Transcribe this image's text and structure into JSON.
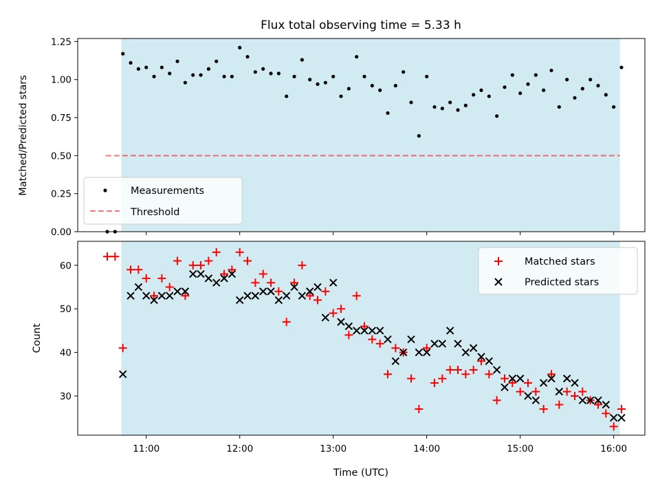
{
  "chart_data": [
    {
      "type": "scatter",
      "title": "Flux total observing time = 5.33 h",
      "ylabel": "Matched/Predicted stars",
      "xlabel": "",
      "ylim": [
        0.0,
        1.27
      ],
      "yticks": [
        "0.00",
        "0.25",
        "0.50",
        "0.75",
        "1.00",
        "1.25"
      ],
      "ytick_values": [
        0.0,
        0.25,
        0.5,
        0.75,
        1.0,
        1.25
      ],
      "grid": false,
      "legend_position": "lower-left",
      "shaded_span": {
        "from": "10:44",
        "to": "16:04",
        "color": "#add8e6"
      },
      "threshold": {
        "name": "Threshold",
        "value": 0.5,
        "from": "10:34",
        "to": "16:04",
        "color": "#ff0000",
        "style": "dashed"
      },
      "series": [
        {
          "name": "Measurements",
          "color": "#000000",
          "marker": "dot",
          "x": [
            "10:35",
            "10:40",
            "10:45",
            "10:50",
            "10:55",
            "11:00",
            "11:05",
            "11:10",
            "11:15",
            "11:20",
            "11:25",
            "11:30",
            "11:35",
            "11:40",
            "11:45",
            "11:50",
            "11:55",
            "12:00",
            "12:05",
            "12:10",
            "12:15",
            "12:20",
            "12:25",
            "12:30",
            "12:35",
            "12:40",
            "12:45",
            "12:50",
            "12:55",
            "13:00",
            "13:05",
            "13:10",
            "13:15",
            "13:20",
            "13:25",
            "13:30",
            "13:35",
            "13:40",
            "13:45",
            "13:50",
            "13:55",
            "14:00",
            "14:05",
            "14:10",
            "14:15",
            "14:20",
            "14:25",
            "14:30",
            "14:35",
            "14:40",
            "14:45",
            "14:50",
            "14:55",
            "15:00",
            "15:05",
            "15:10",
            "15:15",
            "15:20",
            "15:25",
            "15:30",
            "15:35",
            "15:40",
            "15:45",
            "15:50",
            "15:55",
            "16:00",
            "16:05"
          ],
          "y": [
            0.0,
            0.0,
            1.17,
            1.11,
            1.07,
            1.08,
            1.02,
            1.08,
            1.04,
            1.12,
            0.98,
            1.03,
            1.03,
            1.07,
            1.12,
            1.02,
            1.02,
            1.21,
            1.15,
            1.05,
            1.07,
            1.04,
            1.04,
            0.89,
            1.02,
            1.13,
            1.0,
            0.97,
            0.98,
            1.02,
            0.89,
            0.94,
            1.15,
            1.02,
            0.96,
            0.93,
            0.78,
            0.96,
            1.05,
            0.85,
            0.63,
            1.02,
            0.82,
            0.81,
            0.85,
            0.8,
            0.83,
            0.9,
            0.93,
            0.89,
            0.76,
            0.95,
            1.03,
            0.91,
            0.97,
            1.03,
            0.93,
            1.06,
            0.82,
            1.0,
            0.88,
            0.94,
            1.0,
            0.96,
            0.9,
            0.82,
            1.08
          ]
        }
      ]
    },
    {
      "type": "scatter",
      "title": "",
      "ylabel": "Count",
      "xlabel": "Time (UTC)",
      "xlim": [
        "10:16",
        "16:20"
      ],
      "xticks": [
        "11:00",
        "12:00",
        "13:00",
        "14:00",
        "15:00",
        "16:00"
      ],
      "ylim": [
        21.0,
        65.5
      ],
      "yticks": [
        "30",
        "40",
        "50",
        "60"
      ],
      "ytick_values": [
        30,
        40,
        50,
        60
      ],
      "grid": false,
      "legend_position": "upper-right",
      "series": [
        {
          "name": "Matched stars",
          "color": "#ff0000",
          "marker": "plus",
          "x": [
            "10:35",
            "10:40",
            "10:45",
            "10:50",
            "10:55",
            "11:00",
            "11:05",
            "11:10",
            "11:15",
            "11:20",
            "11:25",
            "11:30",
            "11:35",
            "11:40",
            "11:45",
            "11:50",
            "11:55",
            "12:00",
            "12:05",
            "12:10",
            "12:15",
            "12:20",
            "12:25",
            "12:30",
            "12:35",
            "12:40",
            "12:45",
            "12:50",
            "12:55",
            "13:00",
            "13:05",
            "13:10",
            "13:15",
            "13:20",
            "13:25",
            "13:30",
            "13:35",
            "13:40",
            "13:45",
            "13:50",
            "13:55",
            "14:00",
            "14:05",
            "14:10",
            "14:15",
            "14:20",
            "14:25",
            "14:30",
            "14:35",
            "14:40",
            "14:45",
            "14:50",
            "14:55",
            "15:00",
            "15:05",
            "15:10",
            "15:15",
            "15:20",
            "15:25",
            "15:30",
            "15:35",
            "15:40",
            "15:45",
            "15:50",
            "15:55",
            "16:00",
            "16:05"
          ],
          "y": [
            62,
            62,
            41,
            59,
            59,
            57,
            53,
            57,
            55,
            61,
            53,
            60,
            60,
            61,
            63,
            58,
            59,
            63,
            61,
            56,
            58,
            56,
            54,
            47,
            56,
            60,
            53,
            52,
            54,
            49,
            50,
            44,
            53,
            46,
            43,
            42,
            35,
            41,
            40,
            34,
            27,
            41,
            33,
            34,
            36,
            36,
            35,
            36,
            38,
            35,
            29,
            34,
            33,
            31,
            33,
            31,
            27,
            35,
            28,
            31,
            30,
            31,
            29,
            28,
            26,
            23,
            27
          ]
        },
        {
          "name": "Predicted stars",
          "color": "#000000",
          "marker": "x",
          "x": [
            "10:45",
            "10:50",
            "10:55",
            "11:00",
            "11:05",
            "11:10",
            "11:15",
            "11:20",
            "11:25",
            "11:30",
            "11:35",
            "11:40",
            "11:45",
            "11:50",
            "11:55",
            "12:00",
            "12:05",
            "12:10",
            "12:15",
            "12:20",
            "12:25",
            "12:30",
            "12:35",
            "12:40",
            "12:45",
            "12:50",
            "12:55",
            "13:00",
            "13:05",
            "13:10",
            "13:15",
            "13:20",
            "13:25",
            "13:30",
            "13:35",
            "13:40",
            "13:45",
            "13:50",
            "13:55",
            "14:00",
            "14:05",
            "14:10",
            "14:15",
            "14:20",
            "14:25",
            "14:30",
            "14:35",
            "14:40",
            "14:45",
            "14:50",
            "14:55",
            "15:00",
            "15:05",
            "15:10",
            "15:15",
            "15:20",
            "15:25",
            "15:30",
            "15:35",
            "15:40",
            "15:45",
            "15:50",
            "15:55",
            "16:00",
            "16:05"
          ],
          "y": [
            35,
            53,
            55,
            53,
            52,
            53,
            53,
            54,
            54,
            58,
            58,
            57,
            56,
            57,
            58,
            52,
            53,
            53,
            54,
            54,
            52,
            53,
            55,
            53,
            54,
            55,
            48,
            56,
            47,
            46,
            45,
            45,
            45,
            45,
            43,
            38,
            40,
            43,
            40,
            40,
            42,
            42,
            45,
            42,
            40,
            41,
            39,
            38,
            36,
            32,
            34,
            34,
            30,
            29,
            33,
            34,
            31,
            34,
            33,
            29,
            29,
            29,
            28,
            25,
            25
          ]
        }
      ]
    }
  ]
}
